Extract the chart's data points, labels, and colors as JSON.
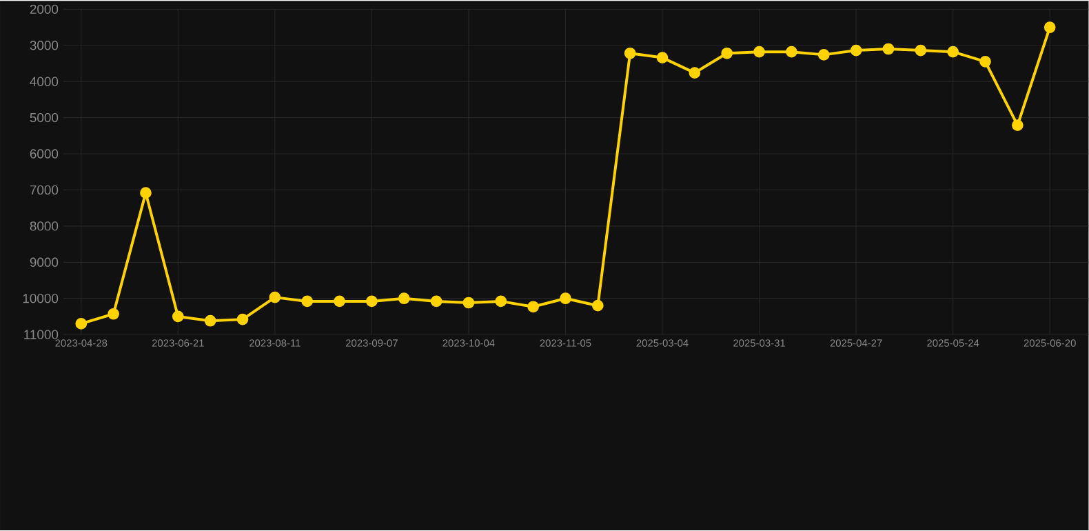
{
  "chart_data": {
    "type": "line",
    "categories": [
      "2023-04-28",
      null,
      null,
      "2023-06-21",
      null,
      null,
      "2023-08-11",
      null,
      null,
      "2023-09-07",
      null,
      null,
      "2023-10-04",
      null,
      null,
      "2023-11-05",
      null,
      null,
      "2025-03-04",
      null,
      null,
      "2025-03-31",
      null,
      null,
      "2025-04-27",
      null,
      null,
      "2025-05-24",
      null,
      null,
      "2025-06-20"
    ],
    "series": [
      {
        "color": "#ffd200",
        "values": [
          10700,
          10430,
          7080,
          10500,
          10620,
          10580,
          9970,
          10080,
          10080,
          10080,
          10000,
          10080,
          10120,
          10080,
          10230,
          10000,
          10200,
          3220,
          3340,
          3760,
          3220,
          3180,
          3180,
          3260,
          3140,
          3100,
          3140,
          3180,
          3450,
          5210,
          2500
        ]
      }
    ],
    "ylim": [
      11000,
      2000
    ],
    "yticks": [
      2000,
      3000,
      4000,
      5000,
      6000,
      7000,
      8000,
      9000,
      10000,
      11000
    ],
    "grid": true,
    "marker": "circle",
    "line_style": "solid"
  }
}
